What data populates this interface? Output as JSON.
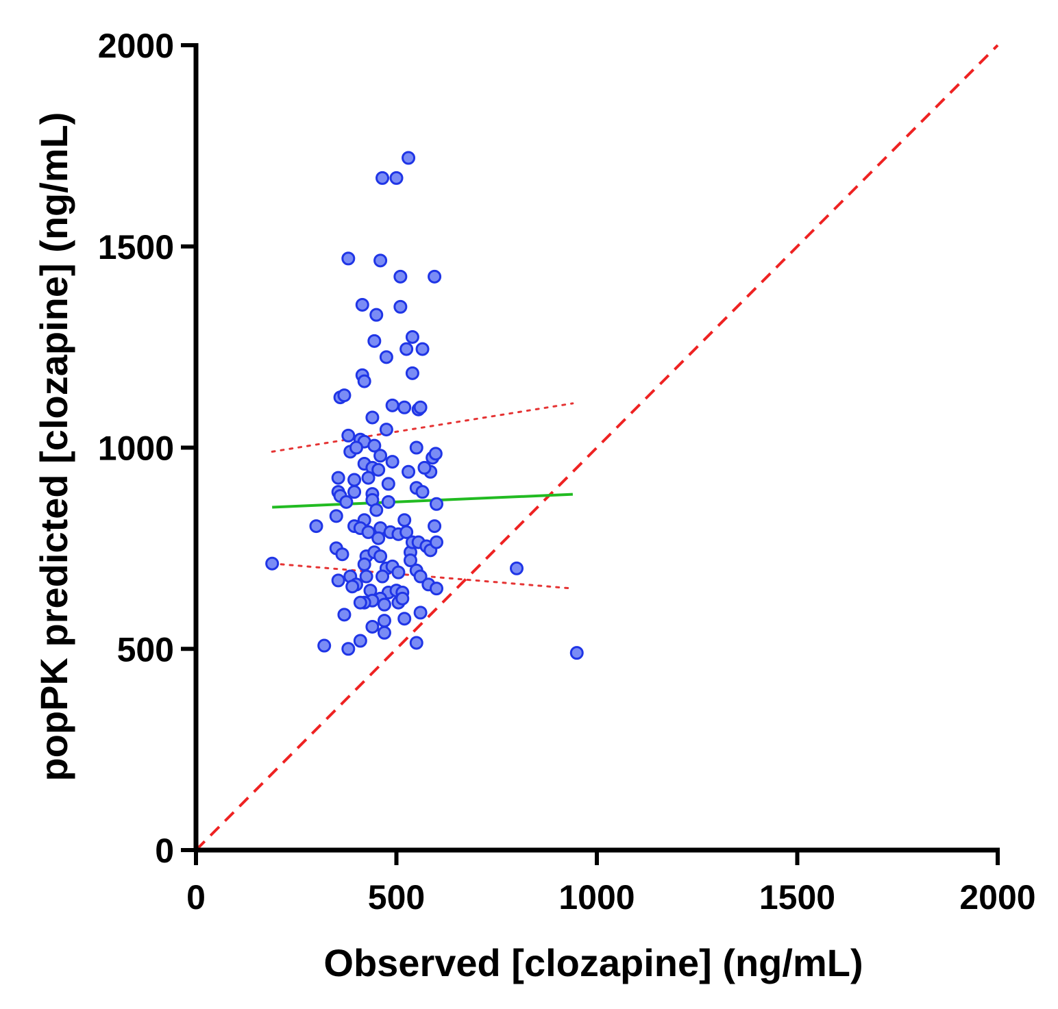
{
  "chart_data": {
    "type": "scatter",
    "title": "",
    "xlabel": "Observed [clozapine] (ng/mL)",
    "ylabel": "popPK predicted [clozapine] (ng/mL)",
    "xlim": [
      0,
      2000
    ],
    "ylim": [
      0,
      2000
    ],
    "xticks": [
      0,
      500,
      1000,
      1500,
      2000
    ],
    "yticks": [
      0,
      500,
      1000,
      1500,
      2000
    ],
    "xtick_labels": [
      "0",
      "500",
      "1000",
      "1500",
      "2000"
    ],
    "ytick_labels": [
      "0",
      "500",
      "1000",
      "1500",
      "2000"
    ],
    "grid": false,
    "legend": "none",
    "colors": {
      "points_fill": "#7a8cf5",
      "points_stroke": "#1f35e6",
      "regression": "#22bb22",
      "confidence_band": "#e53333",
      "identity": "#ee2222",
      "axis": "#000000"
    },
    "identity_line": {
      "name": "line of identity",
      "x": [
        0,
        2000
      ],
      "y": [
        0,
        2000
      ],
      "style": "dashed"
    },
    "regression_line": {
      "name": "linear regression",
      "x": [
        190,
        940
      ],
      "y": [
        852,
        884
      ]
    },
    "confidence_band": {
      "name": "95% confidence band",
      "upper": {
        "x": [
          190,
          940
        ],
        "y": [
          990,
          1110
        ]
      },
      "lower": {
        "x": [
          190,
          940
        ],
        "y": [
          712,
          650
        ]
      }
    },
    "series": [
      {
        "name": "observed vs predicted",
        "points": [
          [
            190,
            712
          ],
          [
            300,
            805
          ],
          [
            320,
            508
          ],
          [
            360,
            1125
          ],
          [
            370,
            1130
          ],
          [
            380,
            1470
          ],
          [
            460,
            1465
          ],
          [
            510,
            1425
          ],
          [
            595,
            1425
          ],
          [
            465,
            1670
          ],
          [
            500,
            1670
          ],
          [
            530,
            1720
          ],
          [
            415,
            1355
          ],
          [
            450,
            1330
          ],
          [
            510,
            1350
          ],
          [
            445,
            1265
          ],
          [
            540,
            1275
          ],
          [
            525,
            1245
          ],
          [
            475,
            1225
          ],
          [
            565,
            1245
          ],
          [
            415,
            1180
          ],
          [
            420,
            1165
          ],
          [
            540,
            1185
          ],
          [
            490,
            1105
          ],
          [
            520,
            1100
          ],
          [
            555,
            1095
          ],
          [
            560,
            1100
          ],
          [
            440,
            1075
          ],
          [
            475,
            1045
          ],
          [
            380,
            1030
          ],
          [
            410,
            1020
          ],
          [
            420,
            1015
          ],
          [
            445,
            1005
          ],
          [
            385,
            990
          ],
          [
            400,
            1000
          ],
          [
            550,
            1000
          ],
          [
            460,
            980
          ],
          [
            490,
            965
          ],
          [
            590,
            975
          ],
          [
            598,
            985
          ],
          [
            420,
            960
          ],
          [
            440,
            950
          ],
          [
            455,
            945
          ],
          [
            530,
            940
          ],
          [
            585,
            940
          ],
          [
            570,
            950
          ],
          [
            355,
            925
          ],
          [
            395,
            920
          ],
          [
            430,
            925
          ],
          [
            480,
            910
          ],
          [
            355,
            890
          ],
          [
            360,
            880
          ],
          [
            395,
            890
          ],
          [
            440,
            885
          ],
          [
            550,
            900
          ],
          [
            565,
            890
          ],
          [
            440,
            870
          ],
          [
            480,
            865
          ],
          [
            600,
            860
          ],
          [
            375,
            865
          ],
          [
            450,
            845
          ],
          [
            350,
            830
          ],
          [
            420,
            820
          ],
          [
            460,
            800
          ],
          [
            395,
            805
          ],
          [
            410,
            800
          ],
          [
            430,
            790
          ],
          [
            485,
            790
          ],
          [
            520,
            820
          ],
          [
            505,
            785
          ],
          [
            525,
            790
          ],
          [
            595,
            805
          ],
          [
            350,
            750
          ],
          [
            365,
            735
          ],
          [
            425,
            730
          ],
          [
            445,
            740
          ],
          [
            455,
            775
          ],
          [
            460,
            730
          ],
          [
            535,
            740
          ],
          [
            540,
            765
          ],
          [
            555,
            765
          ],
          [
            575,
            755
          ],
          [
            585,
            745
          ],
          [
            600,
            765
          ],
          [
            420,
            710
          ],
          [
            475,
            700
          ],
          [
            490,
            705
          ],
          [
            505,
            690
          ],
          [
            535,
            720
          ],
          [
            550,
            695
          ],
          [
            465,
            680
          ],
          [
            355,
            670
          ],
          [
            385,
            680
          ],
          [
            400,
            660
          ],
          [
            425,
            680
          ],
          [
            435,
            645
          ],
          [
            480,
            640
          ],
          [
            500,
            645
          ],
          [
            515,
            640
          ],
          [
            390,
            655
          ],
          [
            560,
            680
          ],
          [
            580,
            660
          ],
          [
            600,
            650
          ],
          [
            460,
            625
          ],
          [
            440,
            620
          ],
          [
            420,
            615
          ],
          [
            410,
            615
          ],
          [
            470,
            610
          ],
          [
            505,
            615
          ],
          [
            515,
            625
          ],
          [
            560,
            590
          ],
          [
            370,
            585
          ],
          [
            470,
            570
          ],
          [
            520,
            575
          ],
          [
            440,
            555
          ],
          [
            470,
            540
          ],
          [
            410,
            520
          ],
          [
            380,
            500
          ],
          [
            550,
            515
          ],
          [
            800,
            700
          ],
          [
            950,
            490
          ]
        ]
      }
    ]
  }
}
